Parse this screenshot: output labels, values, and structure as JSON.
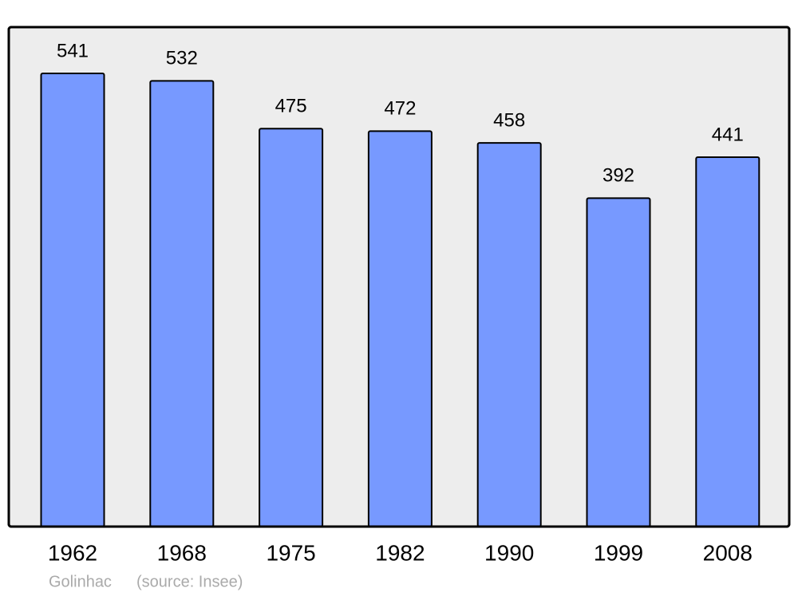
{
  "chart_data": {
    "type": "bar",
    "categories": [
      "1962",
      "1968",
      "1975",
      "1982",
      "1990",
      "1999",
      "2008"
    ],
    "values": [
      541,
      532,
      475,
      472,
      458,
      392,
      441
    ],
    "color": "#7799ff",
    "caption": "Golinhac",
    "source": "(source: Insee)"
  }
}
